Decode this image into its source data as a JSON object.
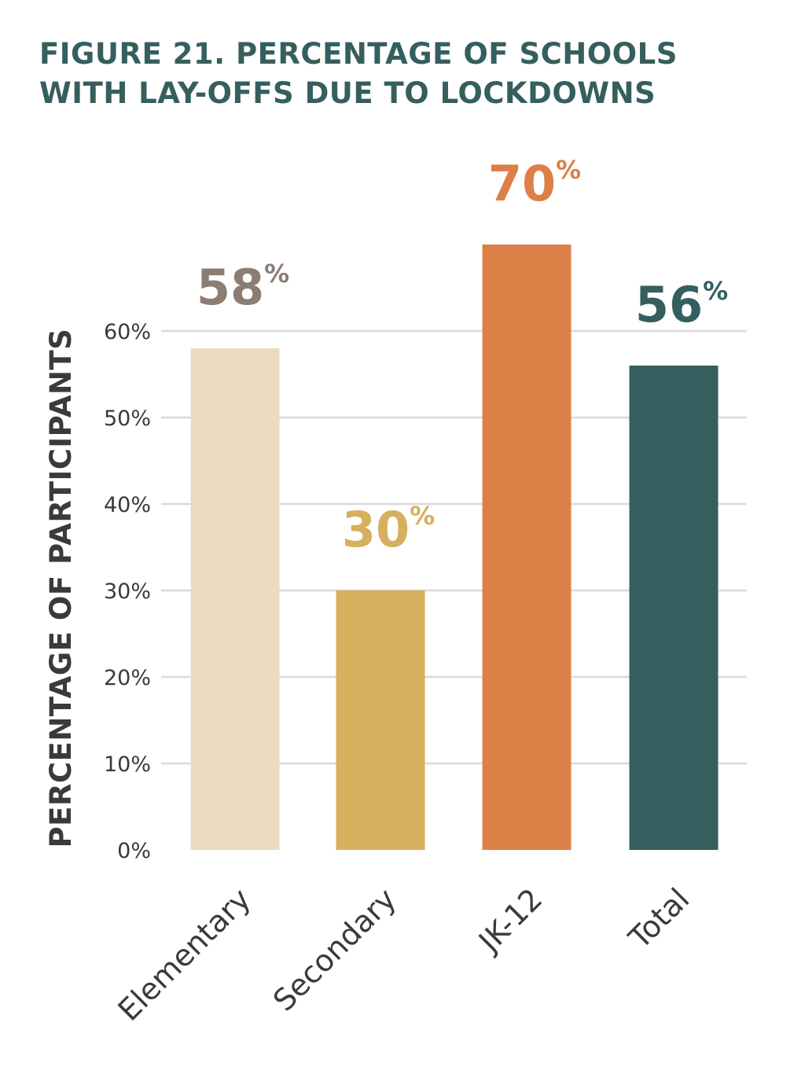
{
  "title": {
    "line1": "FIGURE 21. PERCENTAGE OF SCHOOLS",
    "line2": "WITH LAY-OFFS DUE TO LOCKDOWNS"
  },
  "chart_data": {
    "type": "bar",
    "ylabel": "PERCENTAGE OF PARTICIPANTS",
    "xlabel": "",
    "ylim": [
      0,
      60
    ],
    "yticks": [
      "0%",
      "10%",
      "20%",
      "30%",
      "40%",
      "50%",
      "60%"
    ],
    "grid": true,
    "categories": [
      "Elementary",
      "Secondary",
      "JK-12",
      "Total"
    ],
    "values": [
      58,
      30,
      70,
      56
    ],
    "value_labels": [
      "58",
      "30",
      "70",
      "56"
    ],
    "value_suffix": "%",
    "colors": [
      "#ebdcc0",
      "#d6b05c",
      "#dc8048",
      "#355f5e"
    ],
    "label_colors": [
      "#8b7d74",
      "#d6b05c",
      "#dc8048",
      "#355f5e"
    ]
  }
}
